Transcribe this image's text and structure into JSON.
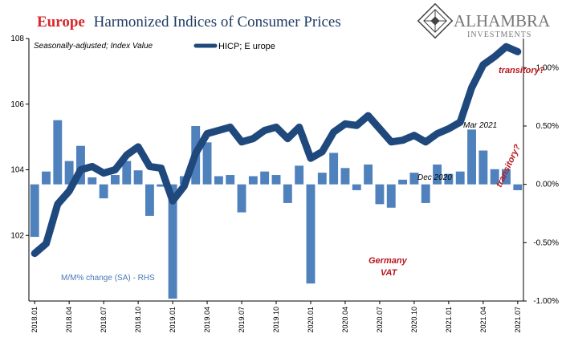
{
  "header": {
    "title_accent": "Europe",
    "title_rest": "Harmonized Indices of Consumer Prices"
  },
  "logo": {
    "name": "ALHAMBRA",
    "sub": "INVESTMENTS"
  },
  "colors": {
    "line": "#1f497d",
    "bars": "#4f81bd",
    "accent": "#d8262b",
    "annotation": "#b8161c"
  },
  "chart_data": {
    "type": "bar+line",
    "note": "Seasonally-adjusted; Index Value",
    "categories": [
      "2018.01",
      "2018.02",
      "2018.03",
      "2018.04",
      "2018.05",
      "2018.06",
      "2018.07",
      "2018.08",
      "2018.09",
      "2018.10",
      "2018.11",
      "2018.12",
      "2019.01",
      "2019.02",
      "2019.03",
      "2019.04",
      "2019.05",
      "2019.06",
      "2019.07",
      "2019.08",
      "2019.09",
      "2019.10",
      "2019.11",
      "2019.12",
      "2020.01",
      "2020.02",
      "2020.03",
      "2020.04",
      "2020.05",
      "2020.06",
      "2020.07",
      "2020.08",
      "2020.09",
      "2020.10",
      "2020.11",
      "2020.12",
      "2021.01",
      "2021.02",
      "2021.03",
      "2021.04",
      "2021.05",
      "2021.06",
      "2021.07"
    ],
    "xtick_labels": [
      "2018.01",
      "2018.04",
      "2018.07",
      "2018.10",
      "2019.01",
      "2019.04",
      "2019.07",
      "2019.10",
      "2020.01",
      "2020.04",
      "2020.07",
      "2020.10",
      "2021.01",
      "2021.04",
      "2021.07"
    ],
    "y_left": {
      "ticks": [
        "102",
        "104",
        "106",
        "108"
      ],
      "range": [
        100,
        108
      ]
    },
    "y_right": {
      "ticks": [
        "-1.00%",
        "-0.50%",
        "0.00%",
        "0.50%",
        "1.00%"
      ],
      "range": [
        -1.0,
        1.25
      ]
    },
    "series": [
      {
        "name": "HICP; Europe",
        "legend_label": "HICP; E urope",
        "axis": "left",
        "values": [
          101.45,
          101.75,
          102.95,
          103.35,
          104.0,
          104.1,
          103.9,
          104.0,
          104.45,
          104.7,
          104.1,
          104.05,
          103.05,
          103.5,
          104.5,
          105.1,
          105.2,
          105.3,
          104.85,
          104.95,
          105.2,
          105.3,
          104.95,
          105.3,
          104.35,
          104.55,
          105.15,
          105.4,
          105.35,
          105.65,
          105.25,
          104.85,
          104.9,
          105.05,
          104.85,
          105.1,
          105.25,
          105.45,
          106.5,
          107.2,
          107.45,
          107.75,
          107.6
        ]
      },
      {
        "name": "M/M% change (SA) - RHS",
        "axis": "right",
        "values": [
          -0.45,
          0.11,
          0.55,
          0.2,
          0.33,
          0.06,
          -0.12,
          0.08,
          0.2,
          0.12,
          -0.27,
          -0.02,
          -0.98,
          0.07,
          0.5,
          0.36,
          0.07,
          0.08,
          -0.24,
          0.07,
          0.11,
          0.08,
          -0.16,
          0.16,
          -0.85,
          0.1,
          0.27,
          0.14,
          -0.05,
          0.17,
          -0.17,
          -0.2,
          0.04,
          0.1,
          -0.16,
          0.17,
          0.09,
          0.11,
          0.47,
          0.29,
          0.13,
          0.13,
          -0.05
        ]
      }
    ],
    "annotations": [
      {
        "text": "transitory?",
        "style": "red"
      },
      {
        "text": "transitory?",
        "style": "red-rotated"
      },
      {
        "text": "Mar 2021",
        "style": "dark"
      },
      {
        "text": "Dec 2020",
        "style": "dark"
      },
      {
        "text": "Germany",
        "style": "red"
      },
      {
        "text": "VAT",
        "style": "red"
      },
      {
        "text": "M/M% change (SA) - RHS",
        "style": "blue"
      }
    ],
    "grid": false,
    "legend_position": "top-center"
  }
}
